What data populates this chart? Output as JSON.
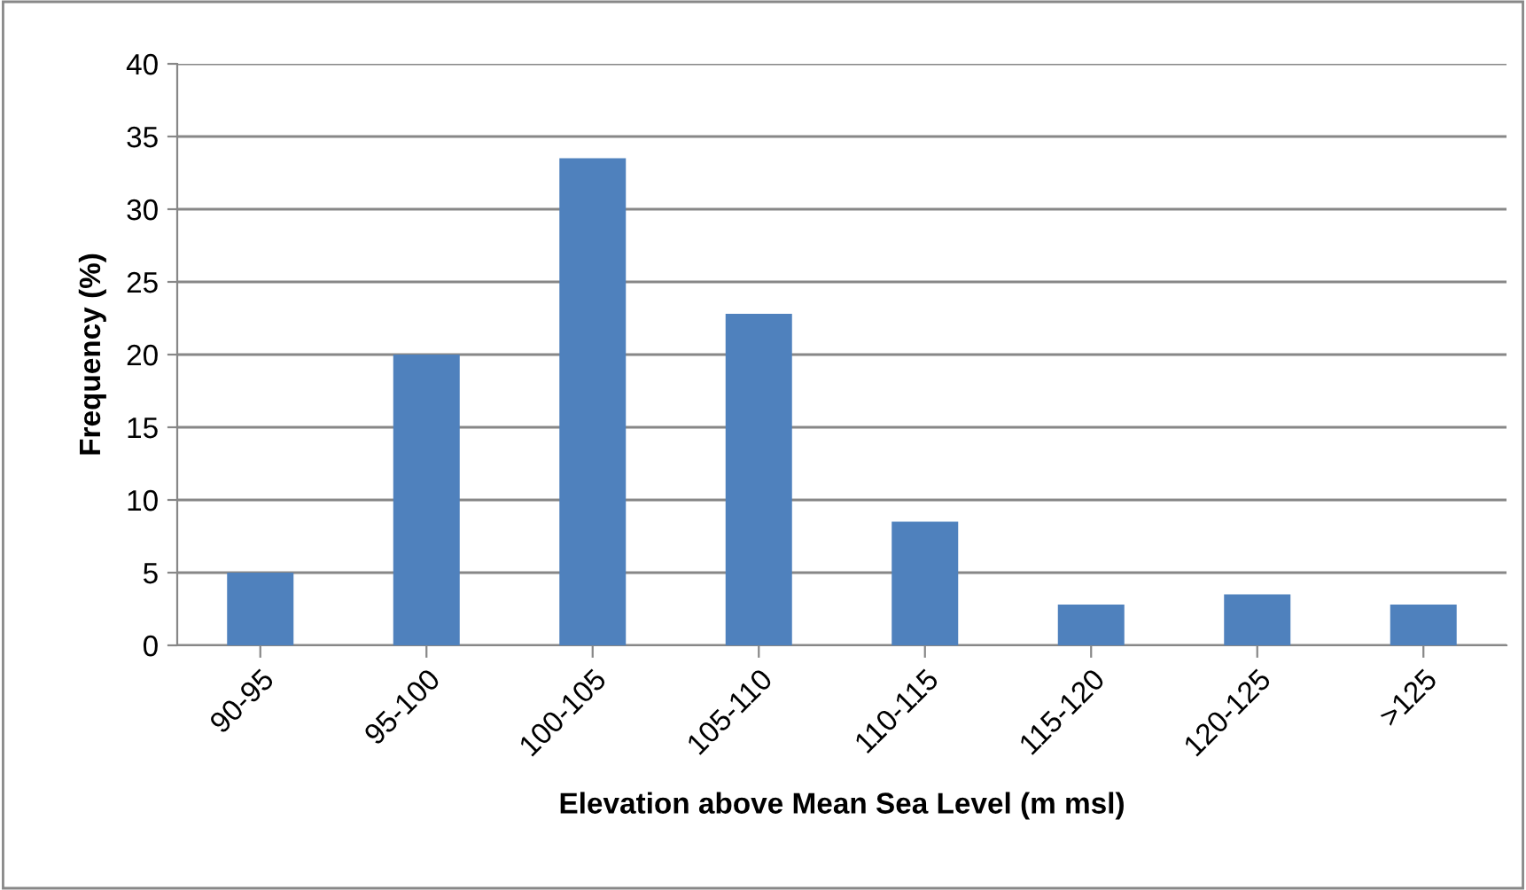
{
  "chart_data": {
    "type": "bar",
    "xlabel": "Elevation above Mean Sea Level (m msl)",
    "ylabel": "Frequency (%)",
    "categories": [
      "90-95",
      "95-100",
      "100-105",
      "105-110",
      "110-115",
      "115-120",
      "120-125",
      ">125"
    ],
    "values": [
      5.0,
      20.0,
      33.5,
      22.8,
      8.5,
      2.8,
      3.5,
      2.8
    ],
    "color": "#4f81bd",
    "ylim": [
      0,
      40
    ],
    "yticks": [
      0,
      5,
      10,
      15,
      20,
      25,
      30,
      35,
      40
    ],
    "grid": "y",
    "legend": false
  }
}
